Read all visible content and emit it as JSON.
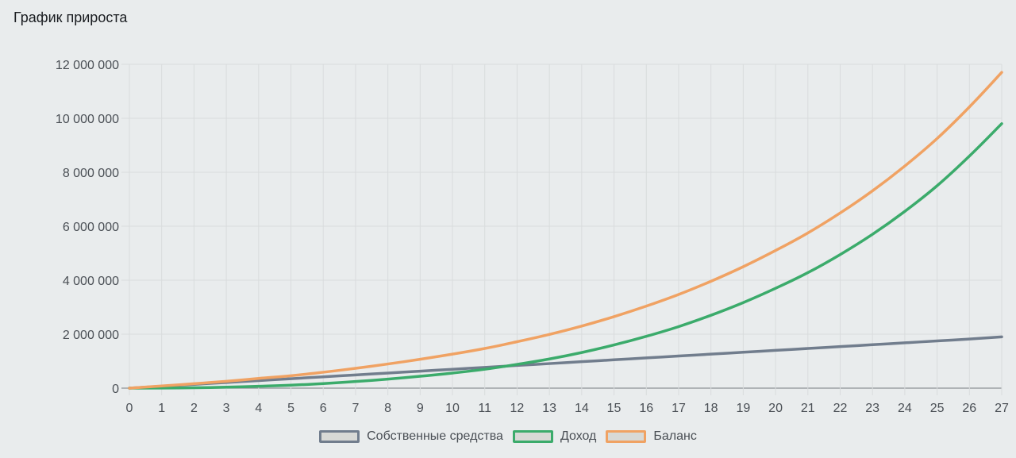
{
  "page": {
    "title": "График прироста"
  },
  "chart_data": {
    "type": "line",
    "title": "График прироста",
    "xlabel": "",
    "ylabel": "",
    "x": [
      0,
      1,
      2,
      3,
      4,
      5,
      6,
      7,
      8,
      9,
      10,
      11,
      12,
      13,
      14,
      15,
      16,
      17,
      18,
      19,
      20,
      21,
      22,
      23,
      24,
      25,
      26,
      27
    ],
    "ylim": [
      0,
      12000000
    ],
    "y_ticks": [
      0,
      2000000,
      4000000,
      6000000,
      8000000,
      10000000,
      12000000
    ],
    "y_tick_labels": [
      "0",
      "2 000 000",
      "4 000 000",
      "6 000 000",
      "8 000 000",
      "10 000 000",
      "12 000 000"
    ],
    "grid": true,
    "legend_position": "bottom",
    "series": [
      {
        "name": "Собственные средства",
        "color": "#717d8d",
        "values": [
          0,
          70000,
          140000,
          210000,
          280000,
          350000,
          420000,
          490000,
          560000,
          630000,
          700000,
          770000,
          840000,
          910000,
          980000,
          1050000,
          1120000,
          1190000,
          1260000,
          1330000,
          1400000,
          1470000,
          1540000,
          1610000,
          1680000,
          1750000,
          1820000,
          1900000
        ]
      },
      {
        "name": "Доход",
        "color": "#3bab6b",
        "values": [
          0,
          5000,
          15000,
          35000,
          70000,
          110000,
          170000,
          245000,
          335000,
          440000,
          560000,
          700000,
          880000,
          1080000,
          1320000,
          1600000,
          1920000,
          2280000,
          2700000,
          3170000,
          3700000,
          4280000,
          4950000,
          5700000,
          6550000,
          7500000,
          8600000,
          9800000
        ]
      },
      {
        "name": "Баланс",
        "color": "#f0a263",
        "values": [
          0,
          80000,
          165000,
          255000,
          360000,
          460000,
          590000,
          735000,
          895000,
          1070000,
          1260000,
          1470000,
          1720000,
          1990000,
          2300000,
          2650000,
          3040000,
          3470000,
          3960000,
          4500000,
          5100000,
          5750000,
          6490000,
          7310000,
          8230000,
          9250000,
          10420000,
          11700000
        ]
      }
    ]
  }
}
